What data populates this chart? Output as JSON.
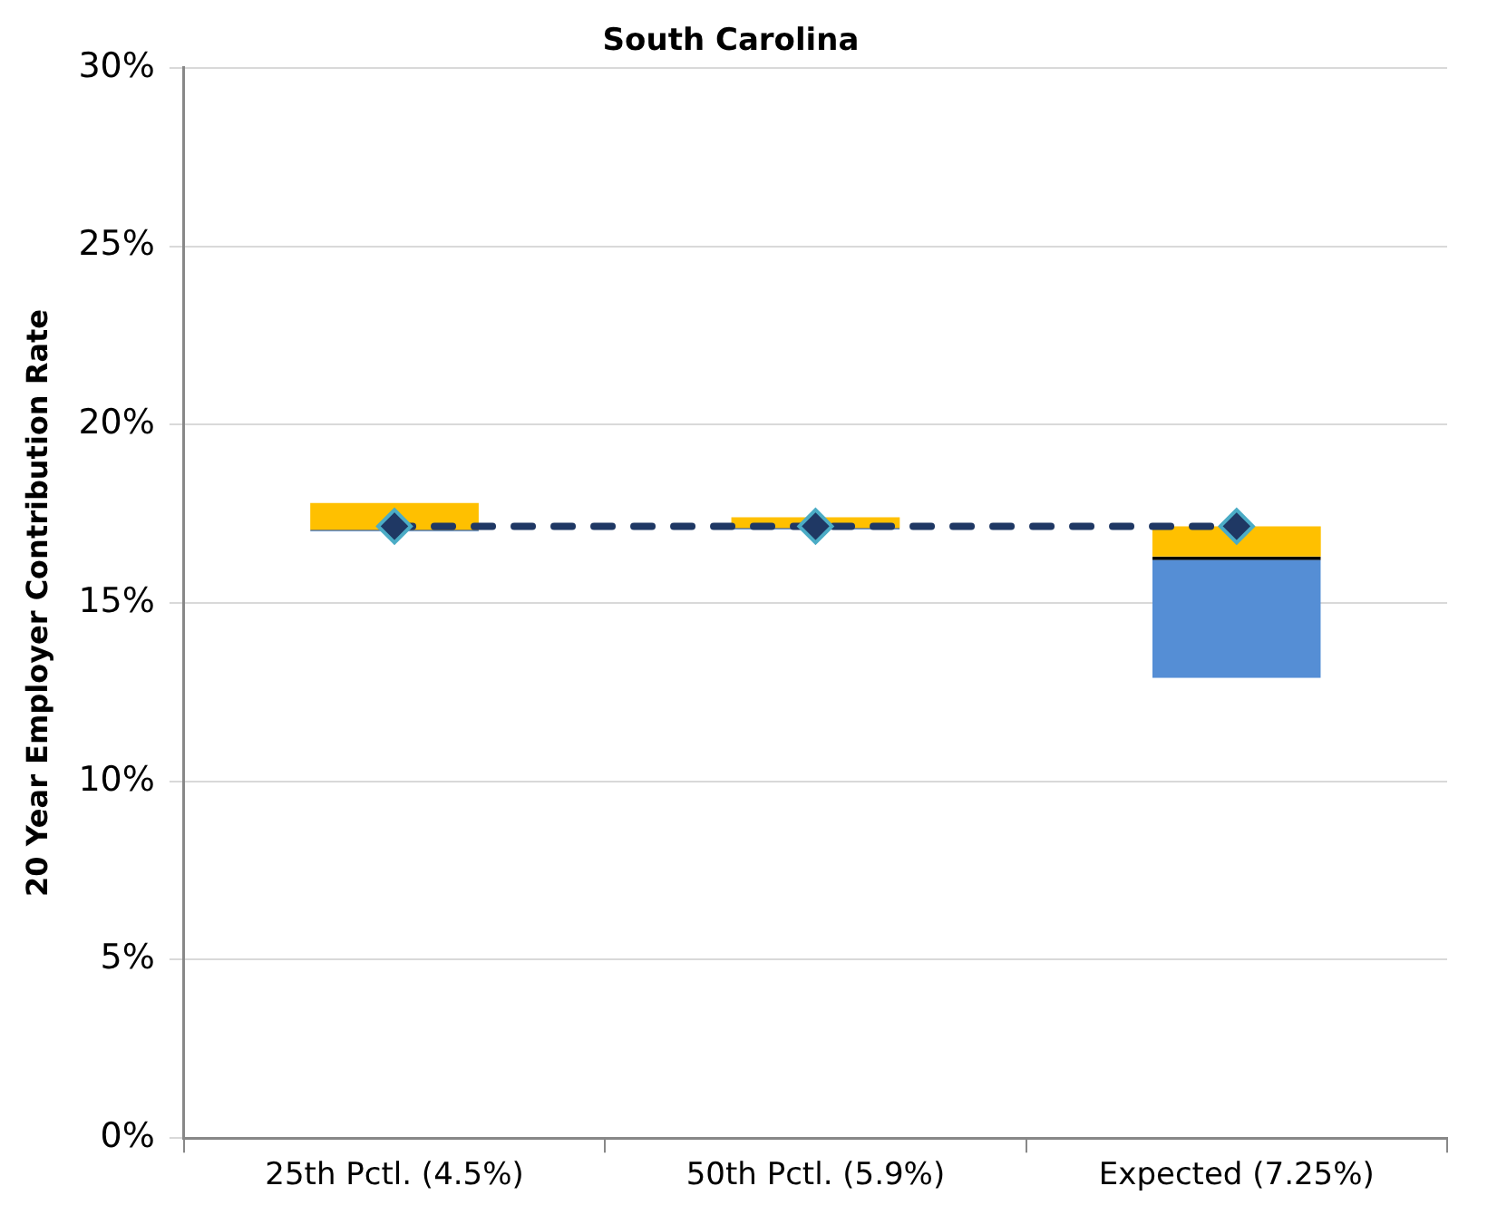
{
  "chart_data": {
    "type": "box",
    "title": "South Carolina",
    "ylabel": "20 Year Employer Contribution Rate",
    "categories": [
      "25th Pctl. (4.5%)",
      "50th Pctl. (5.9%)",
      "Expected (7.25%)"
    ],
    "series": [
      {
        "color": "#ffc000",
        "colors": [
          "#558ed5",
          "#558ed5",
          "#558ed5"
        ],
        "boxes": [
          {
            "low": 17.0,
            "q1": 17.0,
            "median": 17.05,
            "q3": 17.8,
            "high": 17.8
          },
          {
            "low": 17.05,
            "q1": 17.05,
            "median": 17.1,
            "q3": 17.4,
            "high": 17.4
          },
          {
            "low": 12.9,
            "q1": 12.9,
            "median": 16.3,
            "q3": 17.15,
            "high": 17.15
          }
        ]
      },
      {
        "type": "line",
        "color": "#1f3864",
        "values": [
          17.15,
          17.15,
          17.15
        ],
        "marker": "diamond",
        "line_style": "dashed"
      }
    ],
    "ylim": [
      0,
      30
    ],
    "yticks": [
      {
        "value": 0,
        "label": "0%"
      },
      {
        "value": 5,
        "label": "5%"
      },
      {
        "value": 10,
        "label": "10%"
      },
      {
        "value": 15,
        "label": "15%"
      },
      {
        "value": 20,
        "label": "20%"
      },
      {
        "value": 25,
        "label": "25%"
      },
      {
        "value": 30,
        "label": "30%"
      }
    ],
    "grid": "y",
    "legend": false
  }
}
